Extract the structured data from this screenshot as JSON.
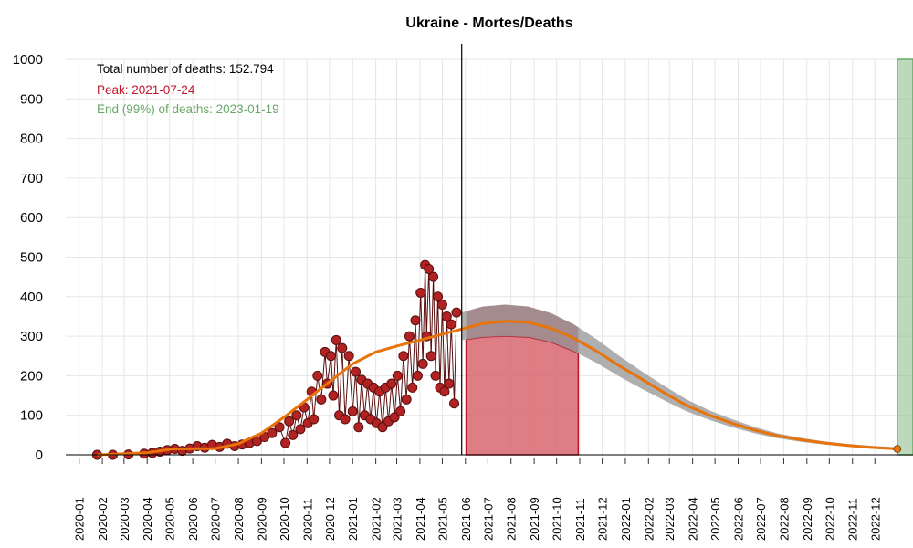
{
  "chart_data": {
    "type": "line",
    "title": "Ukraine - Mortes/Deaths",
    "xlabel": "",
    "ylabel": "",
    "ylim": [
      0,
      1000
    ],
    "yticks": [
      0,
      100,
      200,
      300,
      400,
      500,
      600,
      700,
      800,
      900,
      1000
    ],
    "xlim": [
      "2019-12-14",
      "2023-01-21"
    ],
    "xticks": [
      "2020-01",
      "2020-02",
      "2020-03",
      "2020-04",
      "2020-05",
      "2020-06",
      "2020-07",
      "2020-08",
      "2020-09",
      "2020-10",
      "2020-11",
      "2020-12",
      "2021-01",
      "2021-02",
      "2021-03",
      "2021-04",
      "2021-05",
      "2021-06",
      "2021-07",
      "2021-08",
      "2021-09",
      "2021-10",
      "2021-11",
      "2021-12",
      "2022-01",
      "2022-02",
      "2022-03",
      "2022-04",
      "2022-05",
      "2022-06",
      "2022-07",
      "2022-08",
      "2022-09",
      "2022-10",
      "2022-11",
      "2022-12"
    ],
    "grid": true,
    "annotations": {
      "total": "Total number of deaths: 152.794",
      "peak": "Peak: 2021-07-24",
      "end": "End (99%) of deaths: 2023-01-19"
    },
    "colors": {
      "observed": "#b22222",
      "observed_edge": "#5a0f0f",
      "fit": "#e8730a",
      "uncertainty": "#a6a6a6",
      "peak_band": "#d9666e",
      "end_band": "#8fc08f",
      "annotation_total": "#000000",
      "annotation_peak": "#c0182a",
      "annotation_end": "#6aa86a"
    },
    "current_date": "2021-05-27",
    "peak_band": {
      "x_start": "2021-06-02",
      "x_end": "2021-10-30"
    },
    "end_band": {
      "x_start": "2022-12-31",
      "x_end": "2023-01-21",
      "y": 1000
    },
    "series": [
      {
        "kind": "observed",
        "points": [
          [
            "2020-01-25",
            0
          ],
          [
            "2020-02-15",
            0
          ],
          [
            "2020-03-07",
            1
          ],
          [
            "2020-03-28",
            3
          ],
          [
            "2020-04-08",
            5
          ],
          [
            "2020-04-18",
            8
          ],
          [
            "2020-04-28",
            12
          ],
          [
            "2020-05-08",
            15
          ],
          [
            "2020-05-18",
            10
          ],
          [
            "2020-05-28",
            16
          ],
          [
            "2020-06-07",
            22
          ],
          [
            "2020-06-17",
            18
          ],
          [
            "2020-06-27",
            25
          ],
          [
            "2020-07-07",
            20
          ],
          [
            "2020-07-17",
            28
          ],
          [
            "2020-07-27",
            22
          ],
          [
            "2020-08-06",
            26
          ],
          [
            "2020-08-16",
            30
          ],
          [
            "2020-08-26",
            35
          ],
          [
            "2020-09-05",
            45
          ],
          [
            "2020-09-15",
            55
          ],
          [
            "2020-09-25",
            70
          ],
          [
            "2020-10-03",
            30
          ],
          [
            "2020-10-08",
            85
          ],
          [
            "2020-10-13",
            50
          ],
          [
            "2020-10-18",
            100
          ],
          [
            "2020-10-23",
            65
          ],
          [
            "2020-10-28",
            120
          ],
          [
            "2020-11-02",
            80
          ],
          [
            "2020-11-07",
            160
          ],
          [
            "2020-11-10",
            90
          ],
          [
            "2020-11-15",
            200
          ],
          [
            "2020-11-20",
            140
          ],
          [
            "2020-11-25",
            260
          ],
          [
            "2020-11-28",
            180
          ],
          [
            "2020-12-03",
            250
          ],
          [
            "2020-12-06",
            150
          ],
          [
            "2020-12-10",
            290
          ],
          [
            "2020-12-14",
            100
          ],
          [
            "2020-12-18",
            270
          ],
          [
            "2020-12-22",
            90
          ],
          [
            "2020-12-27",
            250
          ],
          [
            "2021-01-01",
            110
          ],
          [
            "2021-01-05",
            210
          ],
          [
            "2021-01-09",
            70
          ],
          [
            "2021-01-13",
            190
          ],
          [
            "2021-01-17",
            100
          ],
          [
            "2021-01-21",
            180
          ],
          [
            "2021-01-25",
            90
          ],
          [
            "2021-01-29",
            170
          ],
          [
            "2021-02-02",
            80
          ],
          [
            "2021-02-06",
            160
          ],
          [
            "2021-02-10",
            70
          ],
          [
            "2021-02-14",
            170
          ],
          [
            "2021-02-18",
            85
          ],
          [
            "2021-02-22",
            180
          ],
          [
            "2021-02-26",
            95
          ],
          [
            "2021-03-02",
            200
          ],
          [
            "2021-03-06",
            110
          ],
          [
            "2021-03-10",
            250
          ],
          [
            "2021-03-14",
            140
          ],
          [
            "2021-03-18",
            300
          ],
          [
            "2021-03-22",
            170
          ],
          [
            "2021-03-26",
            340
          ],
          [
            "2021-03-29",
            200
          ],
          [
            "2021-04-02",
            410
          ],
          [
            "2021-04-05",
            230
          ],
          [
            "2021-04-08",
            480
          ],
          [
            "2021-04-10",
            300
          ],
          [
            "2021-04-13",
            470
          ],
          [
            "2021-04-16",
            250
          ],
          [
            "2021-04-19",
            450
          ],
          [
            "2021-04-22",
            200
          ],
          [
            "2021-04-25",
            400
          ],
          [
            "2021-04-28",
            170
          ],
          [
            "2021-05-01",
            380
          ],
          [
            "2021-05-04",
            160
          ],
          [
            "2021-05-07",
            350
          ],
          [
            "2021-05-10",
            180
          ],
          [
            "2021-05-13",
            330
          ],
          [
            "2021-05-17",
            130
          ],
          [
            "2021-05-20",
            360
          ]
        ]
      },
      {
        "kind": "fit",
        "points": [
          [
            "2020-01-25",
            0
          ],
          [
            "2020-03-31",
            5
          ],
          [
            "2020-05-06",
            15
          ],
          [
            "2020-07-01",
            16
          ],
          [
            "2020-08-01",
            28
          ],
          [
            "2020-09-01",
            55
          ],
          [
            "2020-10-01",
            95
          ],
          [
            "2020-11-01",
            140
          ],
          [
            "2020-12-01",
            185
          ],
          [
            "2021-01-01",
            230
          ],
          [
            "2021-02-01",
            260
          ],
          [
            "2021-03-01",
            275
          ],
          [
            "2021-04-01",
            290
          ],
          [
            "2021-05-01",
            305
          ],
          [
            "2021-05-27",
            318
          ],
          [
            "2021-06-24",
            332
          ],
          [
            "2021-07-24",
            338
          ],
          [
            "2021-08-24",
            335
          ],
          [
            "2021-09-24",
            320
          ],
          [
            "2021-10-24",
            295
          ],
          [
            "2021-11-24",
            262
          ],
          [
            "2021-12-24",
            225
          ],
          [
            "2022-01-24",
            190
          ],
          [
            "2022-02-24",
            155
          ],
          [
            "2022-03-24",
            125
          ],
          [
            "2022-04-24",
            100
          ],
          [
            "2022-05-24",
            80
          ],
          [
            "2022-06-24",
            62
          ],
          [
            "2022-07-24",
            48
          ],
          [
            "2022-08-24",
            38
          ],
          [
            "2022-09-24",
            30
          ],
          [
            "2022-10-24",
            24
          ],
          [
            "2022-11-24",
            19
          ],
          [
            "2022-12-31",
            15
          ]
        ]
      }
    ],
    "uncertainty_band": {
      "x": [
        "2021-05-27",
        "2021-06-24",
        "2021-07-24",
        "2021-08-24",
        "2021-09-24",
        "2021-10-24",
        "2021-11-24",
        "2021-12-24",
        "2022-01-24",
        "2022-02-24",
        "2022-03-24",
        "2022-04-24",
        "2022-05-24",
        "2022-06-24",
        "2022-07-24",
        "2022-08-24",
        "2022-09-24",
        "2022-10-24",
        "2022-11-24",
        "2022-12-31"
      ],
      "upper": [
        360,
        375,
        380,
        375,
        358,
        330,
        292,
        250,
        210,
        172,
        140,
        112,
        90,
        70,
        54,
        43,
        34,
        28,
        23,
        19
      ],
      "lower": [
        290,
        298,
        300,
        298,
        285,
        262,
        232,
        198,
        166,
        136,
        110,
        88,
        70,
        54,
        42,
        33,
        26,
        21,
        16,
        12
      ]
    }
  }
}
